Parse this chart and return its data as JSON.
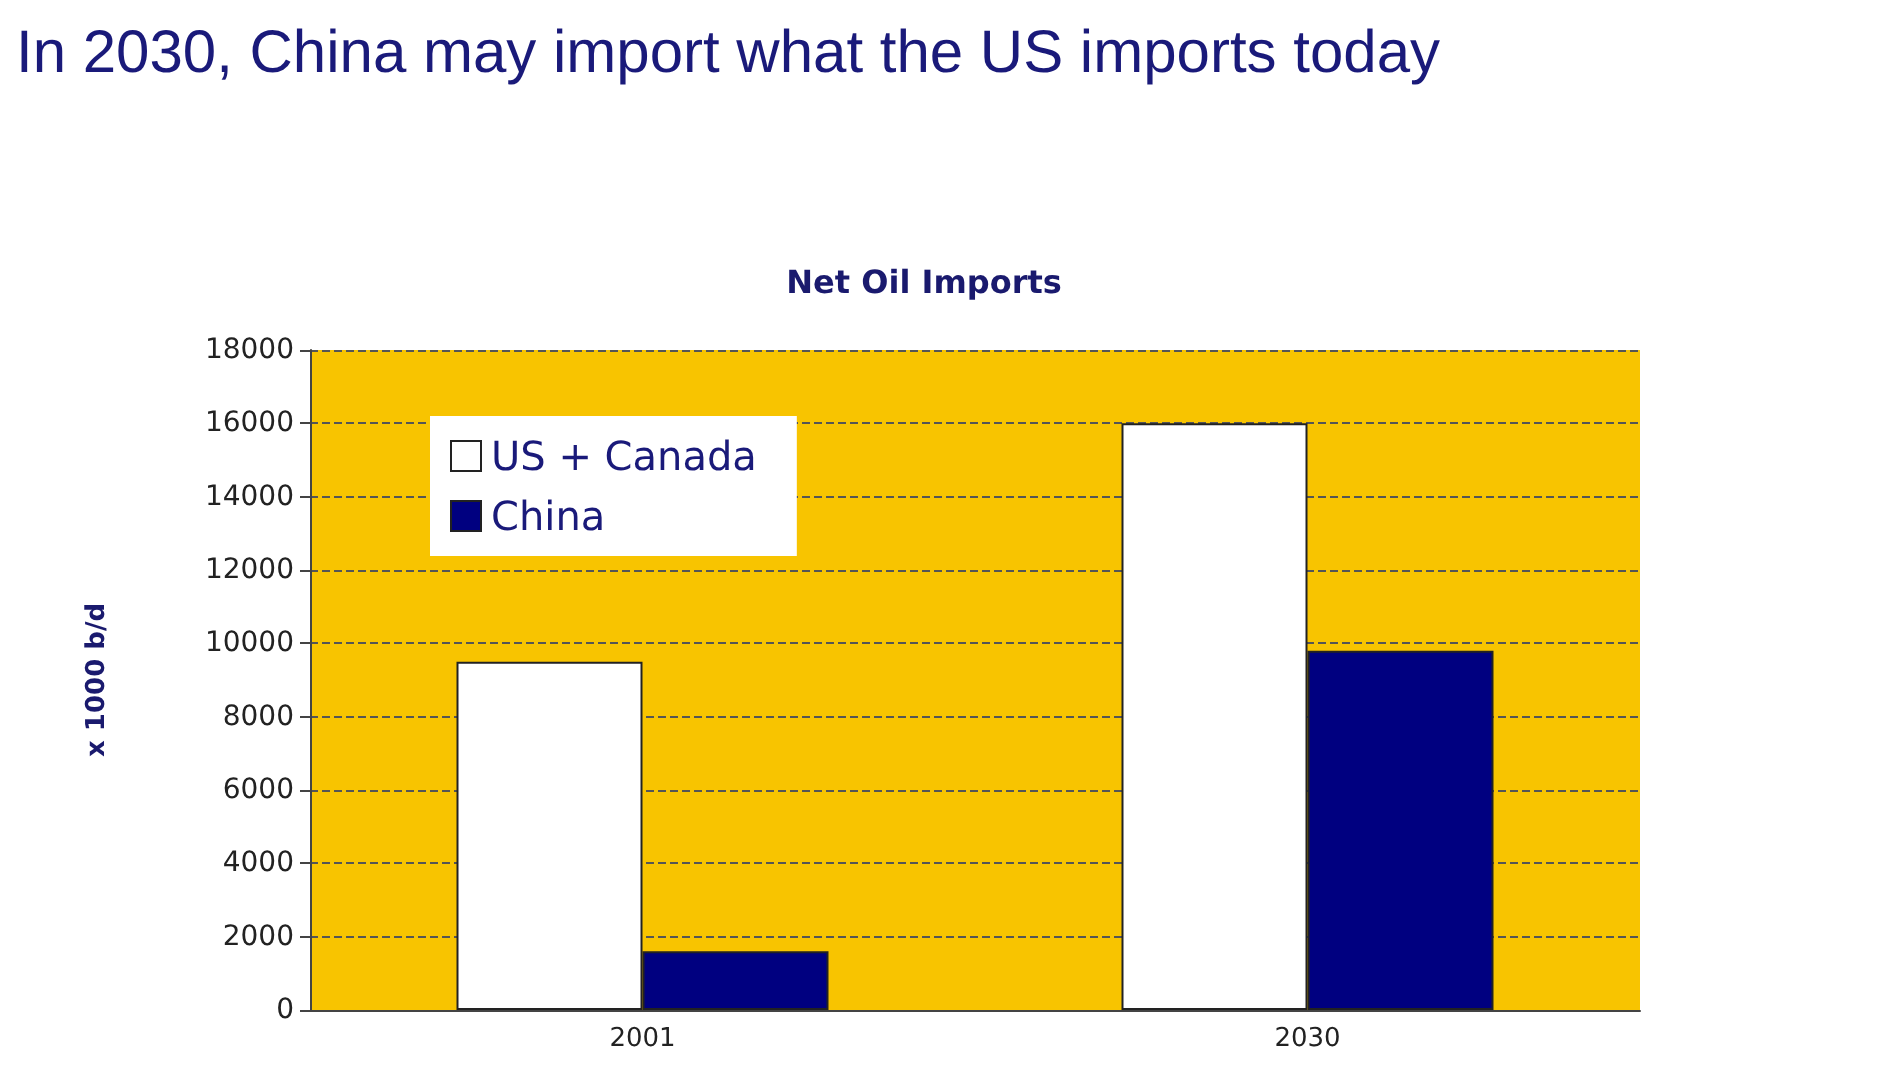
{
  "chart_data": {
    "type": "bar",
    "title": "In 2030, China may import what the US imports today",
    "subtitle": "Net Oil Imports",
    "ylabel": "x 1000 b/d",
    "categories": [
      "2001",
      "2030"
    ],
    "series": [
      {
        "name": "US + Canada",
        "color": "#ffffff",
        "values": [
          9500,
          16000
        ]
      },
      {
        "name": "China",
        "color": "#000080",
        "values": [
          1600,
          9800
        ]
      }
    ],
    "ylim": [
      0,
      18000
    ],
    "yticks": [
      0,
      2000,
      4000,
      6000,
      8000,
      10000,
      12000,
      14000,
      16000,
      18000
    ],
    "grid": "y",
    "legend": "top left"
  }
}
